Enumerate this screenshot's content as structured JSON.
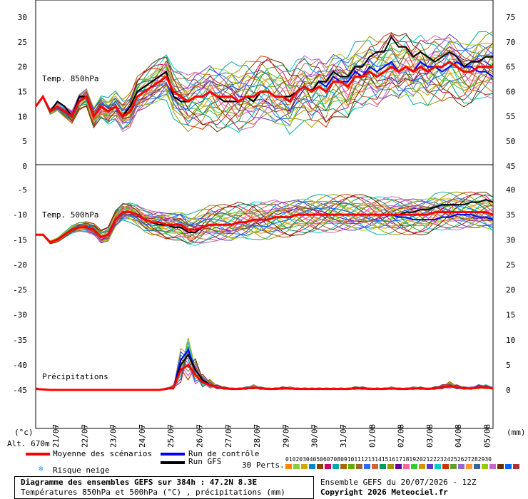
{
  "chart_data": {
    "type": "line",
    "panels": [
      {
        "name": "Temp. 850hPa",
        "ylim": [
          0,
          30
        ],
        "yticks_left": [
          30,
          25,
          20,
          15,
          10,
          5,
          0
        ],
        "right_axis_ticks": [
          75,
          70,
          65,
          60,
          55,
          50,
          45
        ]
      },
      {
        "name": "Temp. 500hPa",
        "ylim": [
          -45,
          -5
        ],
        "yticks_left": [
          -5,
          -10,
          -15,
          -20,
          -25,
          -30,
          -35,
          -40,
          -45
        ],
        "right_axis_ticks": [
          40,
          35,
          30,
          25,
          20,
          15,
          10,
          5,
          0
        ]
      }
    ],
    "precip_label": "Précipitations",
    "x_labels": [
      "21/07",
      "22/07",
      "23/07",
      "24/07",
      "25/07",
      "26/07",
      "27/07",
      "28/07",
      "29/07",
      "30/07",
      "31/07",
      "01/08",
      "02/08",
      "03/08",
      "04/08",
      "05/08"
    ],
    "series": [
      {
        "name": "Moyenne des scénarios",
        "color": "#ff0000",
        "t850": [
          12,
          14,
          11,
          12,
          11,
          10,
          13,
          14,
          10,
          12,
          11,
          12,
          10,
          11,
          14,
          15,
          16,
          17,
          18,
          15,
          14,
          13,
          14,
          14,
          15,
          14,
          14,
          14,
          13,
          14,
          14,
          15,
          15,
          14,
          14,
          13,
          15,
          16,
          15,
          16,
          15,
          17,
          17,
          16,
          18,
          18,
          19,
          18,
          19,
          20,
          19,
          20,
          19,
          20,
          19,
          20,
          20,
          21,
          20,
          19,
          19,
          20,
          20,
          20
        ],
        "t500": [
          -14,
          -14,
          -15.5,
          -15,
          -14,
          -13,
          -12.5,
          -12.5,
          -13,
          -14.5,
          -14,
          -11,
          -9.5,
          -9.5,
          -10,
          -11,
          -11.5,
          -11.5,
          -12,
          -12,
          -12,
          -13,
          -13,
          -12.5,
          -12,
          -12,
          -12,
          -12,
          -11.5,
          -11.5,
          -11,
          -11,
          -11,
          -10.5,
          -10.5,
          -10.5,
          -10,
          -10,
          -10,
          -10,
          -10,
          -10,
          -10,
          -10,
          -10,
          -10,
          -10,
          -10,
          -10,
          -10,
          -10,
          -10,
          -10,
          -10,
          -10,
          -9.5,
          -9.5,
          -9.5,
          -9.5,
          -9.5,
          -9.5,
          -9.5,
          -9.5,
          -10
        ],
        "precip": [
          0.2,
          0.1,
          0,
          0,
          0,
          0,
          0,
          0,
          0,
          0,
          0,
          0,
          0,
          0,
          0,
          0,
          0,
          0,
          0.2,
          0.5,
          4,
          5,
          3,
          1.5,
          1,
          0.5,
          0.3,
          0.2,
          0.2,
          0.3,
          0.5,
          0.3,
          0.2,
          0.2,
          0.3,
          0.3,
          0.2,
          0.2,
          0.2,
          0.2,
          0.2,
          0.2,
          0.2,
          0.2,
          0.3,
          0.3,
          0.2,
          0.2,
          0.2,
          0.3,
          0.2,
          0.2,
          0.3,
          0.3,
          0.2,
          0.3,
          0.5,
          0.8,
          0.5,
          0.3,
          0.3,
          0.5,
          0.5,
          0.3
        ]
      },
      {
        "name": "Run de contrôle",
        "color": "#0000ff",
        "t850": [
          12,
          14,
          11,
          13,
          12,
          10,
          14,
          14,
          10,
          12,
          11,
          12,
          10,
          12,
          15,
          16,
          17,
          18,
          19,
          14,
          13,
          13,
          14,
          14,
          15,
          14,
          13,
          13,
          13,
          14,
          13,
          15,
          15,
          14,
          14,
          14,
          15,
          16,
          15,
          17,
          16,
          18,
          17,
          17,
          19,
          18,
          20,
          19,
          20,
          21,
          19,
          20,
          19,
          21,
          20,
          20,
          19,
          20,
          21,
          20,
          20,
          19,
          19,
          18
        ],
        "t500": [
          -14,
          -14,
          -15.5,
          -15,
          -14,
          -13,
          -12.5,
          -12.5,
          -13,
          -14.5,
          -14,
          -11,
          -9.5,
          -9.5,
          -10,
          -11,
          -11.5,
          -12,
          -12,
          -12.5,
          -12.5,
          -13.5,
          -13.5,
          -12.5,
          -12,
          -12,
          -12,
          -12,
          -11.5,
          -11.5,
          -11,
          -11,
          -11,
          -10.5,
          -10.5,
          -10.5,
          -10,
          -10,
          -10,
          -10,
          -10,
          -10,
          -10,
          -10,
          -10,
          -10,
          -10,
          -10,
          -10,
          -10,
          -10.5,
          -10.5,
          -11,
          -11,
          -11,
          -11,
          -10.5,
          -10.5,
          -10,
          -10,
          -10,
          -10.5,
          -10.5,
          -11
        ],
        "precip": [
          0.2,
          0.1,
          0,
          0,
          0,
          0,
          0,
          0,
          0,
          0,
          0,
          0,
          0,
          0,
          0,
          0,
          0,
          0,
          0.2,
          0.5,
          6,
          8,
          4,
          2,
          1,
          0.5,
          0.3,
          0.2,
          0.2,
          0.3,
          0.5,
          0.3,
          0.2,
          0.2,
          0.3,
          0.3,
          0.2,
          0.2,
          0.2,
          0.2,
          0.2,
          0.2,
          0.2,
          0.2,
          0.3,
          0.3,
          0.2,
          0.2,
          0.2,
          0.3,
          0.2,
          0.2,
          0.3,
          0.3,
          0.2,
          0.3,
          0.5,
          0.8,
          0.5,
          0.3,
          0.3,
          0.5,
          0.5,
          0.3
        ]
      },
      {
        "name": "Run GFS",
        "color": "#000000",
        "t850": [
          12,
          14,
          11,
          13,
          12,
          10,
          14,
          14,
          10,
          12,
          11,
          12,
          10,
          12,
          15,
          16,
          17,
          18,
          19,
          14,
          13,
          13,
          14,
          14,
          15,
          14,
          13,
          13,
          13,
          14,
          13,
          15,
          15,
          14,
          14,
          14,
          15,
          16,
          15,
          17,
          17,
          19,
          18,
          18,
          20,
          20,
          22,
          23,
          23,
          26,
          24,
          24,
          22,
          23,
          22,
          21,
          22,
          23,
          22,
          20,
          21,
          21,
          22,
          22
        ],
        "t500": [
          -14,
          -14,
          -15.5,
          -15,
          -14,
          -13,
          -12.5,
          -12.5,
          -13,
          -14.5,
          -14,
          -11,
          -9.5,
          -9.5,
          -10,
          -11,
          -11.5,
          -12,
          -12,
          -12.5,
          -12.5,
          -13.5,
          -13.5,
          -12.5,
          -12,
          -12,
          -12,
          -12,
          -11.5,
          -11.5,
          -11,
          -11,
          -11,
          -10.5,
          -10.5,
          -10.5,
          -10,
          -10,
          -10,
          -10,
          -10,
          -10,
          -10,
          -10,
          -10,
          -10,
          -10,
          -10,
          -10,
          -10,
          -10,
          -9.5,
          -9.5,
          -9,
          -9,
          -8.5,
          -8,
          -8,
          -8,
          -8,
          -7.5,
          -7.5,
          -7,
          -7.5
        ],
        "precip": [
          0.2,
          0.1,
          0,
          0,
          0,
          0,
          0,
          0,
          0,
          0,
          0,
          0,
          0,
          0,
          0,
          0,
          0,
          0,
          0.2,
          0.5,
          5,
          7,
          4,
          2,
          1,
          0.5,
          0.3,
          0.2,
          0.2,
          0.3,
          0.5,
          0.3,
          0.2,
          0.2,
          0.3,
          0.3,
          0.2,
          0.2,
          0.2,
          0.2,
          0.2,
          0.2,
          0.2,
          0.2,
          0.3,
          0.3,
          0.2,
          0.2,
          0.2,
          0.3,
          0.2,
          0.2,
          0.3,
          0.3,
          0.2,
          0.3,
          0.5,
          0.8,
          0.5,
          0.3,
          0.3,
          0.5,
          0.5,
          0.3
        ]
      }
    ],
    "perturbation_colors": [
      "#ff8800",
      "#88cc44",
      "#ccaa00",
      "#0088cc",
      "#884400",
      "#cc0066",
      "#00aaaa",
      "#aa6600",
      "#66aa00",
      "#996633",
      "#3366ff",
      "#cc6633",
      "#009966",
      "#999900",
      "#660099",
      "#ff6699",
      "#33cc33",
      "#cc9900",
      "#6633cc",
      "#00cccc",
      "#cc3300",
      "#669933",
      "#9966cc",
      "#ff9933",
      "#336699",
      "#99cc00",
      "#cc66cc",
      "#663300",
      "#0066ff",
      "#aa3333"
    ],
    "grid": false
  },
  "labels": {
    "unit_left": "(°c)",
    "unit_right": "(mm)",
    "altitude": "Alt. 670m",
    "legend_mean": "Moyenne des scénarios",
    "legend_control": "Run de contrôle",
    "legend_gfs": "Run GFS",
    "legend_snow": "Risque neige",
    "perts": "30 Perts.",
    "pert_numbers": "010203040506070809101112131415161718192021222324252627282930",
    "title_line1": "Diagramme des ensembles GEFS sur 384h : 47.2N 8.3E",
    "title_line2": "Températures 850hPa et 500hPa (°C) , précipitations (mm)",
    "ensemble": "Ensemble GEFS du 20/07/2026 - 12Z",
    "copyright": "Copyright 2026 Meteociel.fr"
  }
}
